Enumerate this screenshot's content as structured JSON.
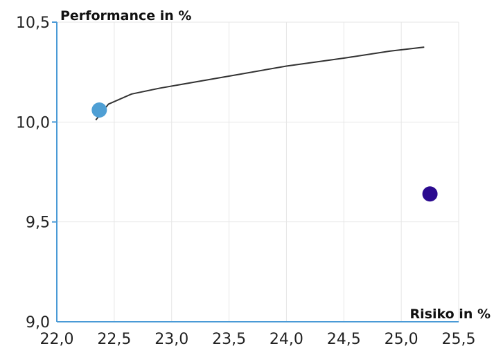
{
  "chart_data": {
    "type": "scatter",
    "title": "",
    "xlabel": "Risiko in %",
    "ylabel": "Performance in %",
    "xlim": [
      22.0,
      25.5
    ],
    "ylim": [
      9.0,
      10.5
    ],
    "x_ticks": [
      "22,0",
      "22,5",
      "23,0",
      "23,5",
      "24,0",
      "24,5",
      "25,0",
      "25,5"
    ],
    "y_ticks": [
      "9,0",
      "9,5",
      "10,0",
      "10,5"
    ],
    "grid": true,
    "legend": "none",
    "series": [
      {
        "type": "line",
        "color": "#333333",
        "points": [
          {
            "x": 22.34,
            "y": 10.01
          },
          {
            "x": 22.45,
            "y": 10.09
          },
          {
            "x": 22.65,
            "y": 10.14
          },
          {
            "x": 22.9,
            "y": 10.17
          },
          {
            "x": 23.2,
            "y": 10.2
          },
          {
            "x": 23.6,
            "y": 10.24
          },
          {
            "x": 24.0,
            "y": 10.28
          },
          {
            "x": 24.5,
            "y": 10.32
          },
          {
            "x": 24.9,
            "y": 10.355
          },
          {
            "x": 25.2,
            "y": 10.375
          }
        ]
      },
      {
        "type": "scatter",
        "color": "#4f9fd4",
        "points": [
          {
            "x": 22.37,
            "y": 10.06
          }
        ]
      },
      {
        "type": "scatter",
        "color": "#2b0a8f",
        "points": [
          {
            "x": 25.25,
            "y": 9.64
          }
        ]
      }
    ]
  }
}
